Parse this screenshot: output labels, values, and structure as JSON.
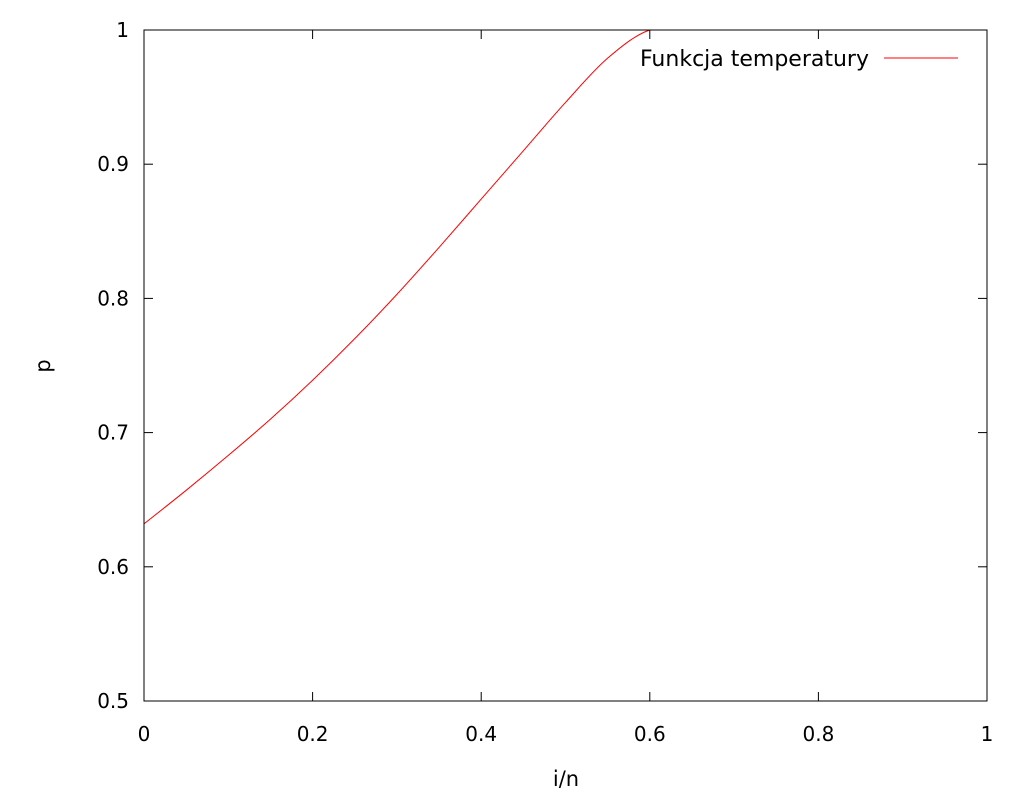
{
  "chart_data": {
    "type": "line",
    "xlabel": "i/n",
    "ylabel": "p",
    "xlim": [
      0,
      1
    ],
    "ylim": [
      0.5,
      1
    ],
    "xticks": [
      "0",
      "0.2",
      "0.4",
      "0.6",
      "0.8",
      "1"
    ],
    "yticks": [
      "0.5",
      "0.6",
      "0.7",
      "0.8",
      "0.9",
      "1"
    ],
    "grid": false,
    "legend_position": "top-right",
    "series": [
      {
        "name": "Funkcja temperatury",
        "color": "#ff0000",
        "x": [
          0,
          0.05,
          0.1,
          0.15,
          0.2,
          0.25,
          0.3,
          0.35,
          0.4,
          0.45,
          0.5,
          0.55,
          0.6,
          0.65,
          0.7,
          0.75,
          0.8,
          0.85,
          0.9,
          0.95,
          1
        ],
        "y": [
          0.632,
          0.657,
          0.683,
          0.71,
          0.739,
          0.77,
          0.803,
          0.838,
          0.874,
          0.91,
          0.946,
          0.979,
          1.0,
          1.0,
          1.0,
          1.0,
          1.0,
          1.0,
          1.0,
          1.0,
          1.0
        ]
      }
    ]
  }
}
